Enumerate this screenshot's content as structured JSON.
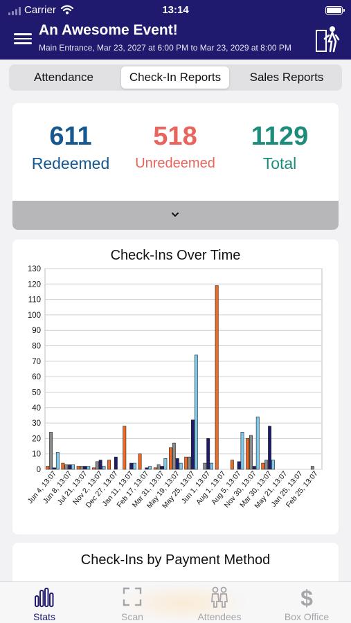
{
  "status": {
    "carrier": "Carrier",
    "time": "13:14"
  },
  "header": {
    "title": "An Awesome Event!",
    "subtitle": "Main Entrance, Mar 23, 2027 at 6:00 PM to Mar 23, 2029 at 8:00 PM"
  },
  "tabs": [
    {
      "label": "Attendance",
      "active": false
    },
    {
      "label": "Check-In Reports",
      "active": true
    },
    {
      "label": "Sales Reports",
      "active": false
    }
  ],
  "stats": [
    {
      "value": "611",
      "label": "Redeemed",
      "color": "#17588f"
    },
    {
      "value": "518",
      "label": "Unredeemed",
      "color": "#e9645c"
    },
    {
      "value": "1129",
      "label": "Total",
      "color": "#1d8c7a"
    }
  ],
  "chart_data": {
    "type": "bar",
    "title": "Check-Ins Over Time",
    "ylim": [
      0,
      130
    ],
    "yticks": [
      0,
      10,
      20,
      30,
      40,
      50,
      60,
      70,
      80,
      90,
      100,
      110,
      120,
      130
    ],
    "grid": true,
    "categories": [
      "Jun 4, 13:07",
      "Jun 8, 13:07",
      "Jul 21, 13:07",
      "Nov 2, 13:07",
      "Dec 27, 13:07",
      "Jan 11, 13:07",
      "Feb 17, 13:07",
      "Mar 31, 13:07",
      "May 19, 13:07",
      "May 25, 13:07",
      "Jun 1, 13:07",
      "Aug 1, 13:07",
      "Aug 5, 13:07",
      "Nov 30, 13:07",
      "Mar 30, 13:07",
      "May 21, 13:07",
      "Jan 25, 13:07",
      "Feb 25, 13:07"
    ],
    "series": [
      {
        "color": "#ef6a24",
        "values": [
          2,
          4,
          2,
          1,
          6,
          28,
          10,
          1,
          14,
          8,
          0,
          119,
          6,
          20,
          4,
          0,
          0,
          0
        ]
      },
      {
        "color": "#8a8a8a",
        "values": [
          24,
          3,
          2,
          5,
          0,
          0,
          0,
          3,
          17,
          8,
          4,
          0,
          0,
          22,
          6,
          0,
          0,
          2
        ]
      },
      {
        "color": "#1e1c6e",
        "values": [
          1,
          3,
          2,
          6,
          8,
          4,
          1,
          2,
          7,
          32,
          20,
          0,
          5,
          2,
          28,
          0,
          0,
          0
        ]
      },
      {
        "color": "#7ec8ea",
        "values": [
          11,
          3,
          2,
          2,
          0,
          4,
          2,
          7,
          4,
          74,
          4,
          0,
          24,
          34,
          6,
          0,
          0,
          0
        ]
      }
    ]
  },
  "payment_card": {
    "title": "Check-Ins by Payment Method"
  },
  "tabbar": [
    {
      "label": "Stats",
      "icon": "bar-chart-icon",
      "active": true
    },
    {
      "label": "Scan",
      "icon": "scan-icon",
      "active": false
    },
    {
      "label": "Attendees",
      "icon": "attendees-icon",
      "active": false
    },
    {
      "label": "Box Office",
      "icon": "dollar-icon",
      "active": false
    }
  ],
  "colors": {
    "header": "#1f1a6e",
    "active_tab": "#1f1a6e",
    "inactive_tab": "#a5a5aa"
  }
}
